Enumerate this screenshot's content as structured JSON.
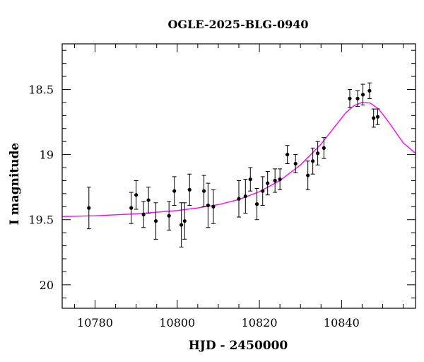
{
  "chart_data": {
    "type": "scatter",
    "title": "OGLE-2025-BLG-0940",
    "xlabel": "HJD - 2450000",
    "ylabel": "I magnitude",
    "xlim": [
      10772,
      10858
    ],
    "ylim": [
      20.18,
      18.15
    ],
    "y_inverted": true,
    "x_ticks": [
      10780,
      10800,
      10820,
      10840
    ],
    "y_ticks": [
      18.5,
      19,
      19.5,
      20
    ],
    "y_tick_labels": [
      "18.5",
      "19",
      "19.5",
      "20"
    ],
    "grid": false,
    "series": [
      {
        "kind": "points_with_errorbars",
        "color": "#000000",
        "points": [
          {
            "x": 10778.5,
            "y": 19.41,
            "err": 0.16
          },
          {
            "x": 10788.8,
            "y": 19.41,
            "err": 0.12
          },
          {
            "x": 10790.0,
            "y": 19.31,
            "err": 0.11
          },
          {
            "x": 10791.8,
            "y": 19.46,
            "err": 0.1
          },
          {
            "x": 10793.0,
            "y": 19.35,
            "err": 0.1
          },
          {
            "x": 10794.8,
            "y": 19.51,
            "err": 0.14
          },
          {
            "x": 10798.0,
            "y": 19.47,
            "err": 0.11
          },
          {
            "x": 10799.3,
            "y": 19.28,
            "err": 0.11
          },
          {
            "x": 10801.0,
            "y": 19.54,
            "err": 0.17
          },
          {
            "x": 10801.8,
            "y": 19.51,
            "err": 0.14
          },
          {
            "x": 10803.0,
            "y": 19.27,
            "err": 0.12
          },
          {
            "x": 10806.5,
            "y": 19.28,
            "err": 0.12
          },
          {
            "x": 10807.5,
            "y": 19.39,
            "err": 0.17
          },
          {
            "x": 10808.8,
            "y": 19.4,
            "err": 0.13
          },
          {
            "x": 10815.0,
            "y": 19.34,
            "err": 0.14
          },
          {
            "x": 10816.6,
            "y": 19.32,
            "err": 0.13
          },
          {
            "x": 10817.8,
            "y": 19.19,
            "err": 0.09
          },
          {
            "x": 10819.4,
            "y": 19.38,
            "err": 0.12
          },
          {
            "x": 10820.8,
            "y": 19.28,
            "err": 0.11
          },
          {
            "x": 10822.0,
            "y": 19.22,
            "err": 0.09
          },
          {
            "x": 10823.8,
            "y": 19.2,
            "err": 0.09
          },
          {
            "x": 10825.0,
            "y": 19.19,
            "err": 0.08
          },
          {
            "x": 10826.8,
            "y": 19.0,
            "err": 0.07
          },
          {
            "x": 10828.8,
            "y": 19.07,
            "err": 0.07
          },
          {
            "x": 10831.8,
            "y": 19.16,
            "err": 0.11
          },
          {
            "x": 10833.0,
            "y": 19.05,
            "err": 0.1
          },
          {
            "x": 10834.2,
            "y": 18.99,
            "err": 0.09
          },
          {
            "x": 10835.7,
            "y": 18.95,
            "err": 0.08
          },
          {
            "x": 10842.0,
            "y": 18.57,
            "err": 0.07
          },
          {
            "x": 10843.9,
            "y": 18.57,
            "err": 0.06
          },
          {
            "x": 10845.2,
            "y": 18.54,
            "err": 0.08
          },
          {
            "x": 10846.8,
            "y": 18.51,
            "err": 0.06
          },
          {
            "x": 10847.8,
            "y": 18.72,
            "err": 0.07
          },
          {
            "x": 10848.8,
            "y": 18.71,
            "err": 0.06
          }
        ]
      },
      {
        "kind": "model_curve",
        "color": "#ff00ff",
        "points": [
          {
            "x": 10772,
            "y": 19.476
          },
          {
            "x": 10780,
            "y": 19.47
          },
          {
            "x": 10790,
            "y": 19.455
          },
          {
            "x": 10800,
            "y": 19.43
          },
          {
            "x": 10805,
            "y": 19.41
          },
          {
            "x": 10810,
            "y": 19.385
          },
          {
            "x": 10815,
            "y": 19.345
          },
          {
            "x": 10820,
            "y": 19.285
          },
          {
            "x": 10825,
            "y": 19.2
          },
          {
            "x": 10830,
            "y": 19.08
          },
          {
            "x": 10835,
            "y": 18.92
          },
          {
            "x": 10838,
            "y": 18.8
          },
          {
            "x": 10841,
            "y": 18.68
          },
          {
            "x": 10843,
            "y": 18.625
          },
          {
            "x": 10845,
            "y": 18.6
          },
          {
            "x": 10847,
            "y": 18.605
          },
          {
            "x": 10849,
            "y": 18.65
          },
          {
            "x": 10851,
            "y": 18.73
          },
          {
            "x": 10853,
            "y": 18.82
          },
          {
            "x": 10855,
            "y": 18.91
          },
          {
            "x": 10858,
            "y": 18.99
          }
        ]
      }
    ]
  }
}
